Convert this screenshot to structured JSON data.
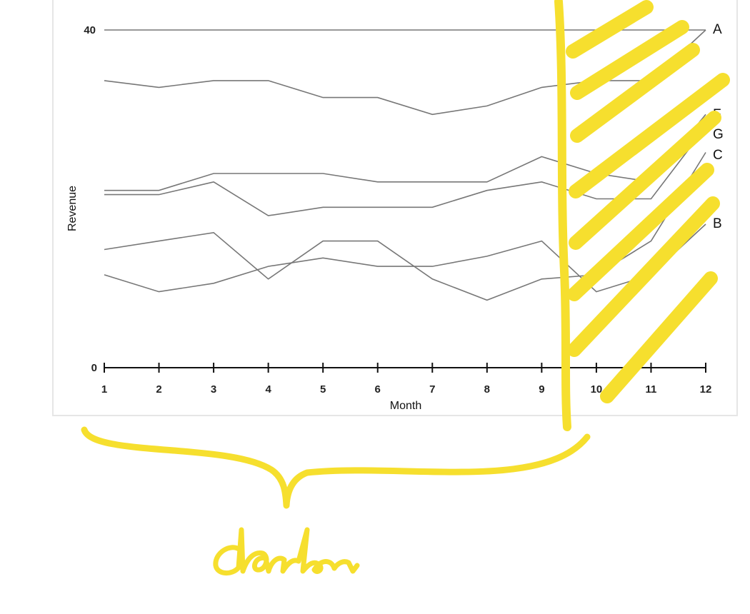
{
  "chart_data": {
    "type": "line",
    "title": "",
    "xlabel": "Month",
    "ylabel": "Revenue",
    "x": [
      1,
      2,
      3,
      4,
      5,
      6,
      7,
      8,
      9,
      10,
      11,
      12
    ],
    "x_tick_labels": [
      "1",
      "2",
      "3",
      "4",
      "5",
      "6",
      "7",
      "8",
      "9",
      "10",
      "11",
      "12"
    ],
    "y_tick_labels": [
      "0",
      "40"
    ],
    "ylim": [
      0,
      40
    ],
    "grid": false,
    "legend": "line-end labels on the right",
    "line_color": "#777777",
    "series": [
      {
        "name": "A",
        "values": [
          40,
          40,
          40,
          40,
          40,
          40,
          40,
          40,
          40,
          40,
          40,
          40
        ]
      },
      {
        "name": "",
        "values": [
          34,
          33.2,
          34,
          34,
          32,
          32,
          30,
          31,
          33.2,
          34,
          34,
          40
        ]
      },
      {
        "name": "F",
        "values": [
          21,
          21,
          23,
          23,
          23,
          22,
          22,
          22,
          25,
          23,
          22,
          30
        ]
      },
      {
        "name": "G",
        "values": [
          20.5,
          20.5,
          22,
          18,
          19,
          19,
          19,
          21,
          22,
          20,
          20,
          28.5
        ]
      },
      {
        "name": "C",
        "values": [
          14,
          15,
          16,
          10.5,
          15,
          15,
          10.5,
          8,
          10.5,
          11,
          15,
          25.5
        ]
      },
      {
        "name": "B",
        "values": [
          11,
          9,
          10,
          12,
          13,
          12,
          12,
          13.2,
          15,
          9,
          11,
          17
        ]
      }
    ]
  },
  "annotation": {
    "handwritten_text": "darker",
    "highlight_color": "#f6df2e"
  }
}
